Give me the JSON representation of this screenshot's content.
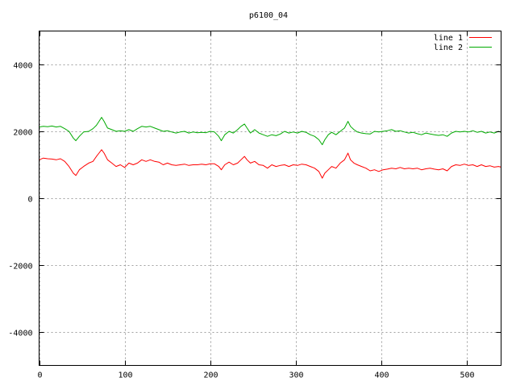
{
  "chart_data": {
    "type": "line",
    "title": "p6100_04",
    "xlabel": "",
    "ylabel": "",
    "xlim": [
      0,
      540
    ],
    "ylim": [
      -5000,
      5000
    ],
    "x_ticks": [
      0,
      100,
      200,
      300,
      400,
      500
    ],
    "y_ticks": [
      -4000,
      -2000,
      0,
      2000,
      4000
    ],
    "grid": true,
    "legend_position": "top-right",
    "series": [
      {
        "name": "line 1",
        "color": "#ff0000",
        "points": [
          [
            0,
            1150
          ],
          [
            5,
            1200
          ],
          [
            10,
            1180
          ],
          [
            15,
            1170
          ],
          [
            20,
            1150
          ],
          [
            25,
            1180
          ],
          [
            30,
            1100
          ],
          [
            35,
            950
          ],
          [
            40,
            750
          ],
          [
            43,
            680
          ],
          [
            47,
            850
          ],
          [
            52,
            950
          ],
          [
            58,
            1050
          ],
          [
            63,
            1100
          ],
          [
            67,
            1250
          ],
          [
            70,
            1350
          ],
          [
            73,
            1450
          ],
          [
            76,
            1350
          ],
          [
            80,
            1150
          ],
          [
            85,
            1050
          ],
          [
            90,
            950
          ],
          [
            95,
            1000
          ],
          [
            100,
            920
          ],
          [
            105,
            1050
          ],
          [
            110,
            1000
          ],
          [
            115,
            1050
          ],
          [
            120,
            1150
          ],
          [
            125,
            1100
          ],
          [
            130,
            1150
          ],
          [
            135,
            1100
          ],
          [
            140,
            1080
          ],
          [
            145,
            1000
          ],
          [
            150,
            1050
          ],
          [
            155,
            1000
          ],
          [
            160,
            980
          ],
          [
            165,
            1000
          ],
          [
            170,
            1020
          ],
          [
            175,
            980
          ],
          [
            180,
            1000
          ],
          [
            185,
            1000
          ],
          [
            190,
            1020
          ],
          [
            195,
            1000
          ],
          [
            200,
            1030
          ],
          [
            205,
            1030
          ],
          [
            210,
            950
          ],
          [
            213,
            850
          ],
          [
            217,
            1000
          ],
          [
            222,
            1080
          ],
          [
            227,
            1000
          ],
          [
            232,
            1050
          ],
          [
            236,
            1150
          ],
          [
            240,
            1250
          ],
          [
            243,
            1150
          ],
          [
            247,
            1050
          ],
          [
            252,
            1100
          ],
          [
            257,
            1000
          ],
          [
            262,
            980
          ],
          [
            267,
            900
          ],
          [
            272,
            1000
          ],
          [
            277,
            950
          ],
          [
            282,
            980
          ],
          [
            287,
            1000
          ],
          [
            292,
            950
          ],
          [
            297,
            1000
          ],
          [
            302,
            980
          ],
          [
            307,
            1020
          ],
          [
            312,
            1000
          ],
          [
            317,
            950
          ],
          [
            322,
            900
          ],
          [
            327,
            800
          ],
          [
            331,
            600
          ],
          [
            334,
            750
          ],
          [
            338,
            850
          ],
          [
            342,
            950
          ],
          [
            347,
            900
          ],
          [
            352,
            1050
          ],
          [
            357,
            1150
          ],
          [
            361,
            1350
          ],
          [
            364,
            1150
          ],
          [
            368,
            1050
          ],
          [
            372,
            1000
          ],
          [
            377,
            950
          ],
          [
            382,
            900
          ],
          [
            387,
            820
          ],
          [
            392,
            850
          ],
          [
            397,
            800
          ],
          [
            402,
            850
          ],
          [
            407,
            870
          ],
          [
            412,
            900
          ],
          [
            417,
            880
          ],
          [
            422,
            920
          ],
          [
            427,
            880
          ],
          [
            432,
            900
          ],
          [
            437,
            880
          ],
          [
            442,
            900
          ],
          [
            447,
            850
          ],
          [
            452,
            880
          ],
          [
            457,
            900
          ],
          [
            462,
            870
          ],
          [
            467,
            850
          ],
          [
            472,
            880
          ],
          [
            477,
            820
          ],
          [
            482,
            950
          ],
          [
            487,
            1000
          ],
          [
            492,
            980
          ],
          [
            497,
            1020
          ],
          [
            502,
            980
          ],
          [
            507,
            1000
          ],
          [
            512,
            950
          ],
          [
            517,
            1000
          ],
          [
            522,
            950
          ],
          [
            527,
            970
          ],
          [
            532,
            930
          ],
          [
            537,
            950
          ],
          [
            540,
            930
          ]
        ]
      },
      {
        "name": "line 2",
        "color": "#00aa00",
        "points": [
          [
            0,
            2130
          ],
          [
            5,
            2150
          ],
          [
            10,
            2140
          ],
          [
            15,
            2160
          ],
          [
            20,
            2130
          ],
          [
            25,
            2150
          ],
          [
            30,
            2080
          ],
          [
            35,
            2000
          ],
          [
            40,
            1800
          ],
          [
            43,
            1720
          ],
          [
            47,
            1850
          ],
          [
            52,
            1980
          ],
          [
            58,
            2000
          ],
          [
            63,
            2080
          ],
          [
            67,
            2180
          ],
          [
            70,
            2300
          ],
          [
            73,
            2420
          ],
          [
            76,
            2300
          ],
          [
            80,
            2100
          ],
          [
            85,
            2050
          ],
          [
            90,
            2000
          ],
          [
            95,
            2020
          ],
          [
            100,
            2000
          ],
          [
            105,
            2050
          ],
          [
            110,
            2000
          ],
          [
            115,
            2080
          ],
          [
            120,
            2150
          ],
          [
            125,
            2130
          ],
          [
            130,
            2150
          ],
          [
            135,
            2100
          ],
          [
            140,
            2050
          ],
          [
            145,
            2000
          ],
          [
            150,
            2020
          ],
          [
            155,
            1980
          ],
          [
            160,
            1950
          ],
          [
            165,
            1980
          ],
          [
            170,
            2000
          ],
          [
            175,
            1950
          ],
          [
            180,
            1980
          ],
          [
            185,
            1960
          ],
          [
            190,
            1970
          ],
          [
            195,
            1960
          ],
          [
            200,
            2000
          ],
          [
            205,
            1980
          ],
          [
            210,
            1850
          ],
          [
            213,
            1720
          ],
          [
            217,
            1900
          ],
          [
            222,
            2000
          ],
          [
            227,
            1950
          ],
          [
            232,
            2050
          ],
          [
            236,
            2150
          ],
          [
            240,
            2220
          ],
          [
            243,
            2100
          ],
          [
            247,
            1950
          ],
          [
            252,
            2050
          ],
          [
            257,
            1950
          ],
          [
            262,
            1900
          ],
          [
            267,
            1850
          ],
          [
            272,
            1900
          ],
          [
            277,
            1870
          ],
          [
            282,
            1920
          ],
          [
            287,
            2000
          ],
          [
            292,
            1950
          ],
          [
            297,
            1980
          ],
          [
            302,
            1950
          ],
          [
            307,
            2000
          ],
          [
            312,
            1970
          ],
          [
            317,
            1900
          ],
          [
            322,
            1850
          ],
          [
            327,
            1750
          ],
          [
            331,
            1600
          ],
          [
            334,
            1750
          ],
          [
            338,
            1900
          ],
          [
            342,
            1970
          ],
          [
            347,
            1900
          ],
          [
            352,
            2000
          ],
          [
            357,
            2100
          ],
          [
            361,
            2300
          ],
          [
            364,
            2150
          ],
          [
            368,
            2050
          ],
          [
            372,
            1980
          ],
          [
            377,
            1950
          ],
          [
            382,
            1930
          ],
          [
            387,
            1920
          ],
          [
            392,
            2000
          ],
          [
            397,
            1980
          ],
          [
            402,
            2000
          ],
          [
            407,
            2020
          ],
          [
            412,
            2050
          ],
          [
            417,
            2000
          ],
          [
            422,
            2020
          ],
          [
            427,
            1980
          ],
          [
            432,
            1950
          ],
          [
            437,
            1970
          ],
          [
            442,
            1930
          ],
          [
            447,
            1900
          ],
          [
            452,
            1950
          ],
          [
            457,
            1920
          ],
          [
            462,
            1900
          ],
          [
            467,
            1880
          ],
          [
            472,
            1900
          ],
          [
            477,
            1850
          ],
          [
            482,
            1950
          ],
          [
            487,
            2000
          ],
          [
            492,
            1980
          ],
          [
            497,
            2000
          ],
          [
            502,
            1980
          ],
          [
            507,
            2020
          ],
          [
            512,
            1970
          ],
          [
            517,
            2000
          ],
          [
            522,
            1950
          ],
          [
            527,
            1980
          ],
          [
            532,
            1950
          ],
          [
            537,
            2000
          ],
          [
            540,
            1970
          ]
        ]
      }
    ]
  }
}
